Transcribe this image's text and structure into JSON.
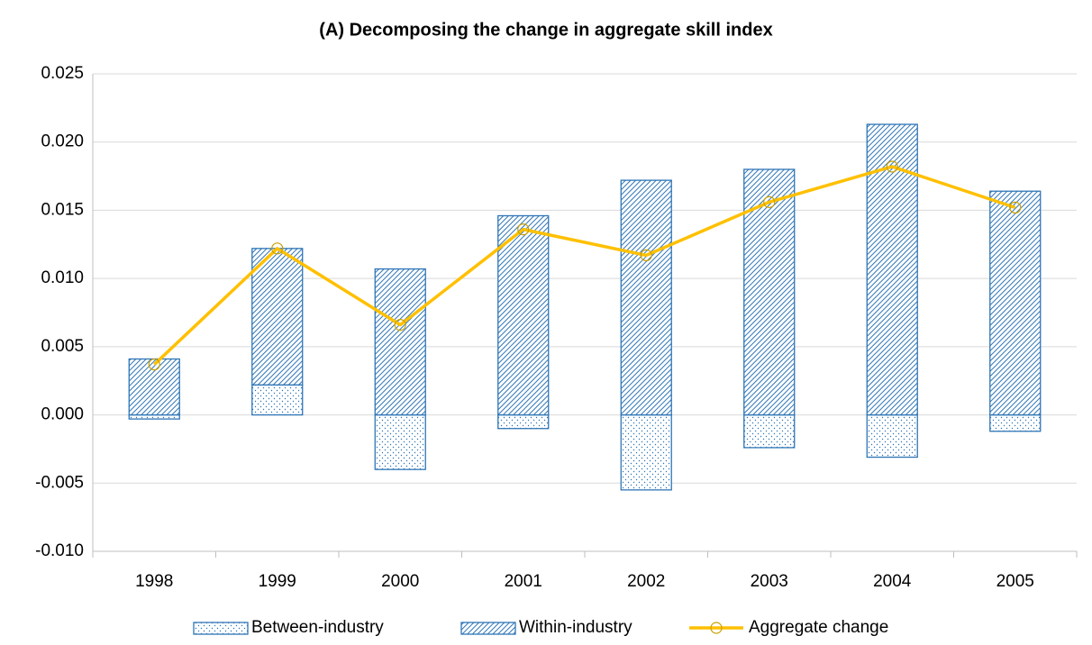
{
  "chart_data": {
    "type": "bar",
    "title": "(A) Decomposing the change in aggregate skill index",
    "categories": [
      "1998",
      "1999",
      "2000",
      "2001",
      "2002",
      "2003",
      "2004",
      "2005"
    ],
    "series": [
      {
        "name": "Between-industry",
        "type": "bar",
        "pattern": "dots",
        "color": "#2e75b6",
        "values": [
          -0.0003,
          0.0022,
          -0.004,
          -0.001,
          -0.0055,
          -0.0024,
          -0.0031,
          -0.0012
        ]
      },
      {
        "name": "Within-industry",
        "type": "bar",
        "pattern": "hatch",
        "color": "#2e75b6",
        "values": [
          0.0041,
          0.01,
          0.0107,
          0.0146,
          0.0172,
          0.018,
          0.0213,
          0.0164
        ]
      },
      {
        "name": "Aggregate change",
        "type": "line",
        "color": "#ffc000",
        "values": [
          0.0037,
          0.0122,
          0.0066,
          0.0136,
          0.0117,
          0.0156,
          0.0182,
          0.0152
        ]
      }
    ],
    "ylim": [
      -0.01,
      0.025
    ],
    "yticks": [
      {
        "value": -0.01,
        "label": "-0.010"
      },
      {
        "value": -0.005,
        "label": "-0.005"
      },
      {
        "value": 0,
        "label": "0.000"
      },
      {
        "value": 0.005,
        "label": "0.005"
      },
      {
        "value": 0.01,
        "label": "0.010"
      },
      {
        "value": 0.015,
        "label": "0.015"
      },
      {
        "value": 0.02,
        "label": "0.020"
      },
      {
        "value": 0.025,
        "label": "0.025"
      }
    ],
    "grid": true,
    "legend": "bottom"
  }
}
